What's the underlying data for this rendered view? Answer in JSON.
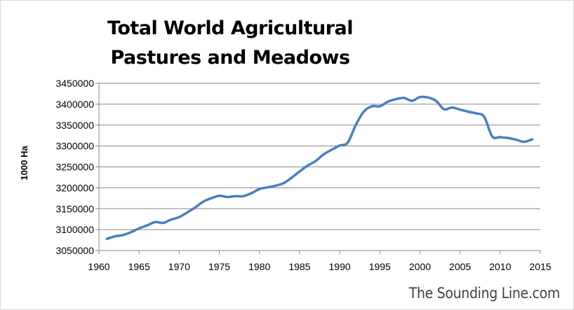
{
  "chart_data": {
    "type": "line",
    "title": "Total World Agricultural Pastures and Meadows",
    "ylabel": "1000 Ha",
    "xlabel": "",
    "xlim": [
      1960,
      2015
    ],
    "ylim": [
      3050000,
      3450000
    ],
    "x_ticks": [
      1960,
      1965,
      1970,
      1975,
      1980,
      1985,
      1990,
      1995,
      2000,
      2005,
      2010,
      2015
    ],
    "y_ticks": [
      3050000,
      3100000,
      3150000,
      3200000,
      3250000,
      3300000,
      3350000,
      3400000,
      3450000
    ],
    "grid": "horizontal",
    "series": [
      {
        "color": "#4a7ebb",
        "x": [
          1961,
          1962,
          1963,
          1964,
          1965,
          1966,
          1967,
          1968,
          1969,
          1970,
          1971,
          1972,
          1973,
          1974,
          1975,
          1976,
          1977,
          1978,
          1979,
          1980,
          1981,
          1982,
          1983,
          1984,
          1985,
          1986,
          1987,
          1988,
          1989,
          1990,
          1991,
          1992,
          1993,
          1994,
          1995,
          1996,
          1997,
          1998,
          1999,
          2000,
          2001,
          2002,
          2003,
          2004,
          2005,
          2006,
          2007,
          2008,
          2009,
          2010,
          2011,
          2012,
          2013,
          2014
        ],
        "values": [
          3078000,
          3084000,
          3087000,
          3094000,
          3103000,
          3110000,
          3118000,
          3116000,
          3124000,
          3130000,
          3141000,
          3153000,
          3167000,
          3175000,
          3181000,
          3178000,
          3180000,
          3180000,
          3187000,
          3197000,
          3201000,
          3205000,
          3211000,
          3224000,
          3239000,
          3253000,
          3264000,
          3280000,
          3291000,
          3301000,
          3308000,
          3350000,
          3382000,
          3395000,
          3395000,
          3406000,
          3412000,
          3415000,
          3408000,
          3417000,
          3416000,
          3408000,
          3388000,
          3392000,
          3387000,
          3382000,
          3378000,
          3370000,
          3323000,
          3321000,
          3319000,
          3315000,
          3310000,
          3316000
        ]
      }
    ]
  },
  "watermark": "The Sounding Line.com"
}
